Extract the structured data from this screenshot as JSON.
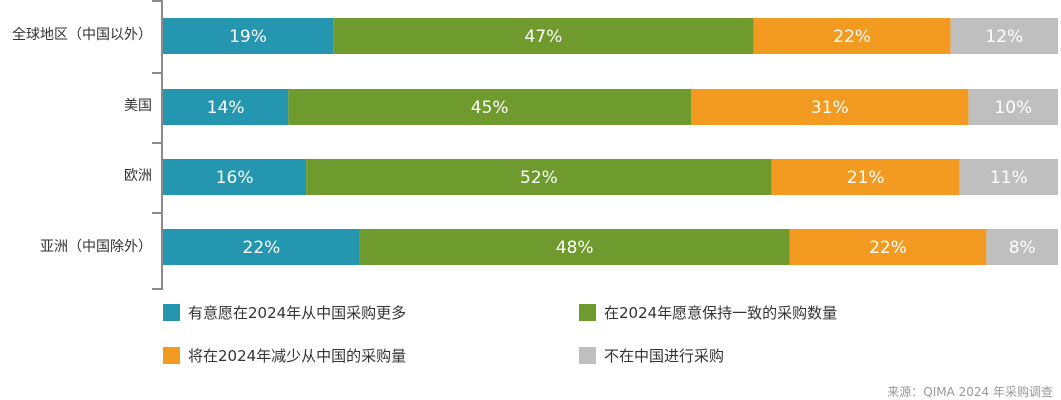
{
  "chart_data": {
    "type": "bar",
    "orientation": "horizontal",
    "stacked": true,
    "categories": [
      "全球地区（中国以外）",
      "美国",
      "欧洲",
      "亚洲（中国除外）"
    ],
    "series": [
      {
        "name": "有意愿在2024年从中国采购更多",
        "color": "#2596b0",
        "values": [
          19,
          14,
          16,
          22
        ],
        "labels": [
          "19%",
          "14%",
          "16%",
          "22%"
        ]
      },
      {
        "name": "在2024年愿意保持一致的采购数量",
        "color": "#6f9b2e",
        "values": [
          47,
          45,
          52,
          48
        ],
        "labels": [
          "47%",
          "45%",
          "52%",
          "48%"
        ]
      },
      {
        "name": "将在2024年减少从中国的采购量",
        "color": "#f39a20",
        "values": [
          22,
          31,
          21,
          22
        ],
        "labels": [
          "22%",
          "31%",
          "21%",
          "22%"
        ]
      },
      {
        "name": "不在中国进行采购",
        "color": "#bfbfbf",
        "values": [
          12,
          10,
          11,
          8
        ],
        "labels": [
          "12%",
          "10%",
          "11%",
          "8%"
        ]
      }
    ],
    "xlim": [
      0,
      100
    ],
    "grid": false,
    "legend_position": "bottom"
  },
  "source": "来源：QIMA 2024 年采购调查"
}
